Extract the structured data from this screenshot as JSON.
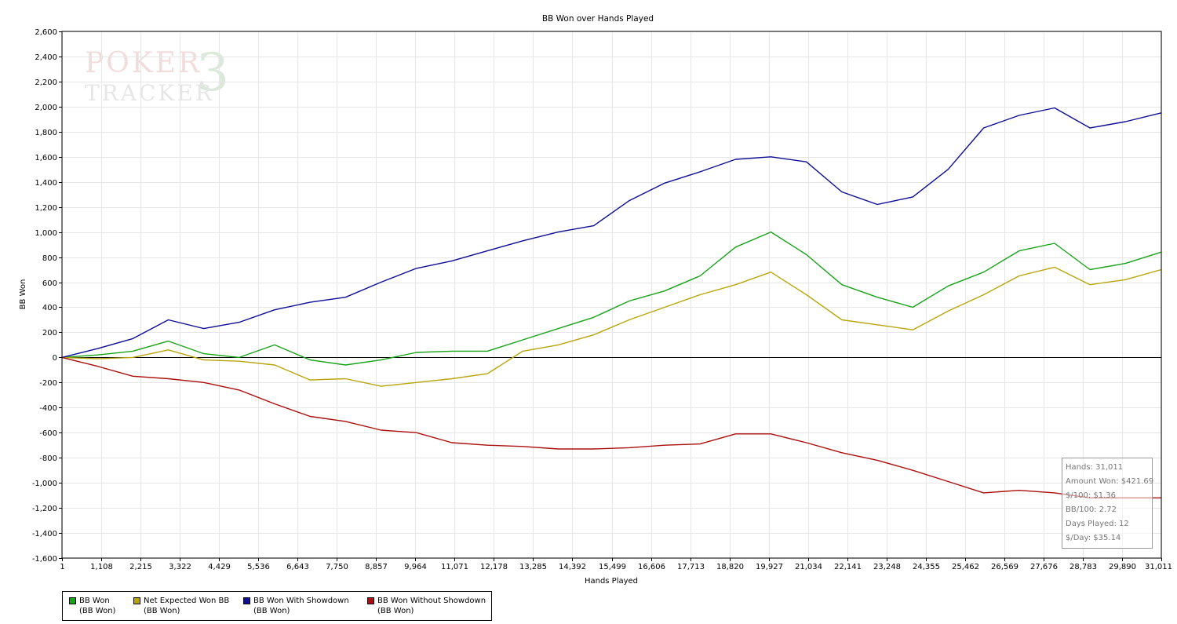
{
  "watermark": {
    "line1": "POKER",
    "digit": "3",
    "line2": "TRACKER"
  },
  "stats": [
    "Hands: 31,011",
    "Amount Won: $421.69",
    "$/100: $1.36",
    "BB/100: 2.72",
    "Days Played: 12",
    "$/Day: $35.14"
  ],
  "legend": [
    {
      "name": "BB Won",
      "sub": "(BB Won)",
      "color": "#17a317"
    },
    {
      "name": "Net Expected Won BB",
      "sub": "(BB Won)",
      "color": "#b8a50b"
    },
    {
      "name": "BB Won With Showdown",
      "sub": "(BB Won)",
      "color": "#0d0d96"
    },
    {
      "name": "BB Won Without Showdown",
      "sub": "(BB Won)",
      "color": "#ac0d0d"
    }
  ],
  "chart_data": {
    "type": "line",
    "title": "BB Won over Hands Played",
    "xlabel": "Hands Played",
    "ylabel": "BB Won",
    "xlim": [
      1,
      31011
    ],
    "ylim": [
      -1600,
      2600
    ],
    "x_ticks": [
      "1",
      "1,108",
      "2,215",
      "3,322",
      "4,429",
      "5,536",
      "6,643",
      "7,750",
      "8,857",
      "9,964",
      "11,071",
      "12,178",
      "13,285",
      "14,392",
      "15,499",
      "16,606",
      "17,713",
      "18,820",
      "19,927",
      "21,034",
      "22,141",
      "23,248",
      "24,355",
      "25,462",
      "26,569",
      "27,676",
      "28,783",
      "29,890",
      "31,011"
    ],
    "y_ticks": [
      "2,600",
      "2,400",
      "2,200",
      "2,000",
      "1,800",
      "1,600",
      "1,400",
      "1,200",
      "1,000",
      "800",
      "600",
      "400",
      "200",
      "0",
      "-200",
      "-400",
      "-600",
      "-800",
      "-1,000",
      "-1,200",
      "-1,400",
      "-1,600"
    ],
    "grid": true,
    "legend_position": "bottom-left",
    "x": [
      1,
      1000,
      2000,
      3000,
      4000,
      5000,
      6000,
      7000,
      8000,
      9000,
      10000,
      11000,
      12000,
      13000,
      14000,
      15000,
      16000,
      17000,
      18000,
      19000,
      20000,
      21000,
      22000,
      23000,
      24000,
      25000,
      26000,
      27000,
      28000,
      29000,
      30000,
      31011
    ],
    "series": [
      {
        "name": "BB Won",
        "color": "#17a317",
        "values": [
          0,
          20,
          50,
          130,
          30,
          0,
          100,
          -20,
          -60,
          -20,
          40,
          50,
          50,
          140,
          230,
          320,
          450,
          530,
          650,
          880,
          1000,
          820,
          580,
          480,
          400,
          570,
          680,
          850,
          910,
          700,
          750,
          840
        ]
      },
      {
        "name": "Net Expected Won BB",
        "color": "#b8a50b",
        "values": [
          0,
          -10,
          0,
          60,
          -20,
          -30,
          -60,
          -180,
          -170,
          -230,
          -200,
          -170,
          -130,
          50,
          100,
          180,
          300,
          400,
          500,
          580,
          680,
          500,
          300,
          260,
          220,
          370,
          500,
          650,
          720,
          580,
          620,
          700
        ]
      },
      {
        "name": "BB Won With Showdown",
        "color": "#0d0d96",
        "values": [
          0,
          70,
          150,
          300,
          230,
          280,
          380,
          440,
          480,
          600,
          710,
          770,
          850,
          930,
          1000,
          1050,
          1250,
          1390,
          1480,
          1580,
          1600,
          1560,
          1320,
          1220,
          1280,
          1500,
          1830,
          1930,
          1990,
          1830,
          1880,
          1950
        ]
      },
      {
        "name": "BB Won Without Showdown",
        "color": "#ac0d0d",
        "values": [
          0,
          -70,
          -150,
          -170,
          -200,
          -260,
          -370,
          -470,
          -510,
          -580,
          -600,
          -680,
          -700,
          -710,
          -730,
          -730,
          -720,
          -700,
          -690,
          -610,
          -610,
          -680,
          -760,
          -820,
          -900,
          -990,
          -1080,
          -1060,
          -1080,
          -1120,
          -1120,
          -1120
        ]
      }
    ]
  }
}
